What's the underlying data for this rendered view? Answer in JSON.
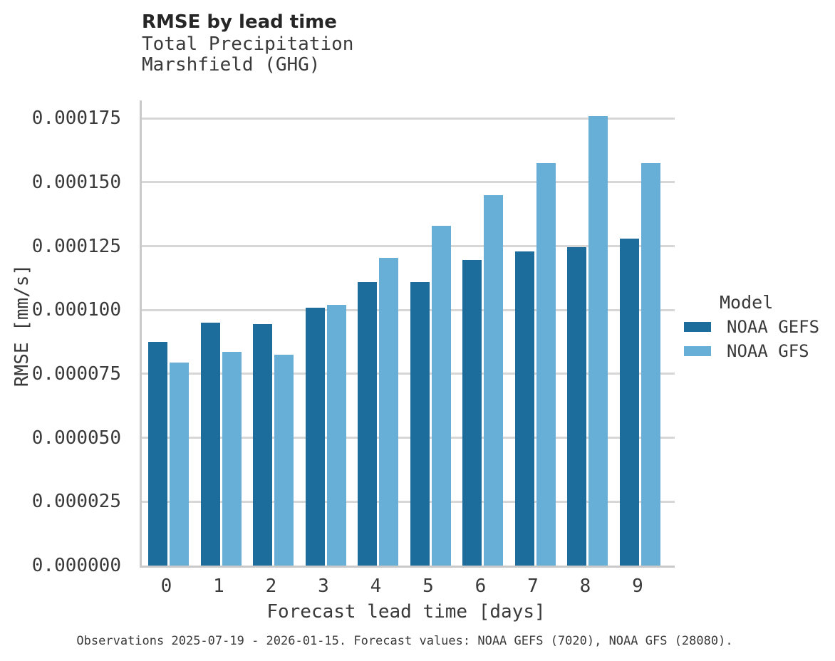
{
  "header": {
    "title": "RMSE by lead time",
    "subtitle_line1": "Total Precipitation",
    "subtitle_line2": "Marshfield (GHG)"
  },
  "chart_data": {
    "type": "bar",
    "title": "RMSE by lead time",
    "subtitle": [
      "Total Precipitation",
      "Marshfield (GHG)"
    ],
    "xlabel": "Forecast lead time [days]",
    "ylabel": "RMSE [mm/s]",
    "categories": [
      "0",
      "1",
      "2",
      "3",
      "4",
      "5",
      "6",
      "7",
      "8",
      "9"
    ],
    "series": [
      {
        "name": "NOAA GEFS",
        "color": "#1c6d9c",
        "values": [
          8.75e-05,
          9.5e-05,
          9.45e-05,
          0.000101,
          0.000111,
          0.000111,
          0.0001195,
          0.000123,
          0.0001245,
          0.000128
        ]
      },
      {
        "name": "NOAA GFS",
        "color": "#67afd6",
        "values": [
          7.95e-05,
          8.35e-05,
          8.25e-05,
          0.000102,
          0.0001205,
          0.000133,
          0.000145,
          0.0001575,
          0.000176,
          0.0001575
        ]
      }
    ],
    "ylim": [
      0,
      0.000182
    ],
    "y_ticks": [
      0,
      2.5e-05,
      5e-05,
      7.5e-05,
      0.0001,
      0.000125,
      0.00015,
      0.000175
    ],
    "y_tick_decimals": 6,
    "grid": "horizontal",
    "legend_title": "Model",
    "legend_position": "right"
  },
  "colors": {
    "gridline": "#d7d7d7",
    "spine": "#c9c9c9",
    "title_text": "#262626",
    "body_text": "#3a3a3a"
  },
  "footer": {
    "note": "Observations 2025-07-19 - 2026-01-15. Forecast values: NOAA GEFS (7020), NOAA GFS (28080)."
  }
}
